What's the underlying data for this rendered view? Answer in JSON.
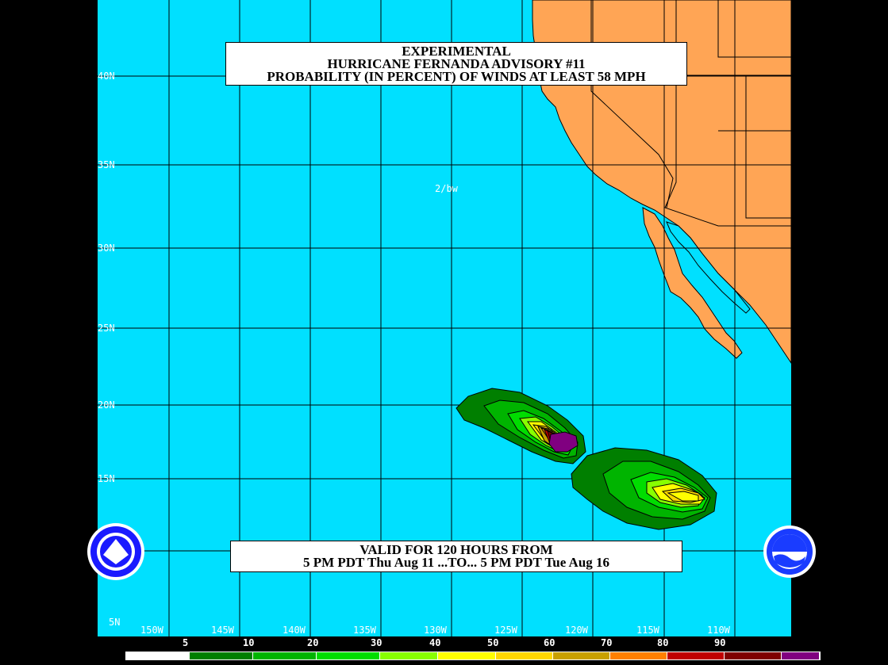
{
  "title": {
    "line1": "EXPERIMENTAL",
    "line2": "HURRICANE FERNANDA ADVISORY #11",
    "line3": "PROBABILITY (IN PERCENT) OF WINDS AT LEAST 58 MPH"
  },
  "valid": {
    "line1": "VALID FOR 120 HOURS FROM",
    "line2": "5 PM PDT Thu Aug 11 ...TO... 5 PM PDT Tue Aug 16"
  },
  "annotation": "2/bw",
  "lat_labels": [
    "40N",
    "35N",
    "30N",
    "25N",
    "20N",
    "15N",
    "5N"
  ],
  "lon_labels": [
    "150W",
    "145W",
    "140W",
    "135W",
    "130W",
    "125W",
    "120W",
    "115W",
    "110W"
  ],
  "legend": {
    "values": [
      "5",
      "10",
      "20",
      "30",
      "40",
      "50",
      "60",
      "70",
      "80",
      "90"
    ],
    "colors": [
      "#ffffff",
      "#007f00",
      "#00b400",
      "#00dd00",
      "#88ff00",
      "#ffff00",
      "#ffd700",
      "#c8a000",
      "#ff8000",
      "#c00000",
      "#7f0000",
      "#800080"
    ]
  },
  "colors": {
    "ocean": "#00e0ff",
    "land": "#ffa555",
    "grid": "#000000"
  },
  "logos": [
    "nws-logo",
    "noaa-logo"
  ]
}
